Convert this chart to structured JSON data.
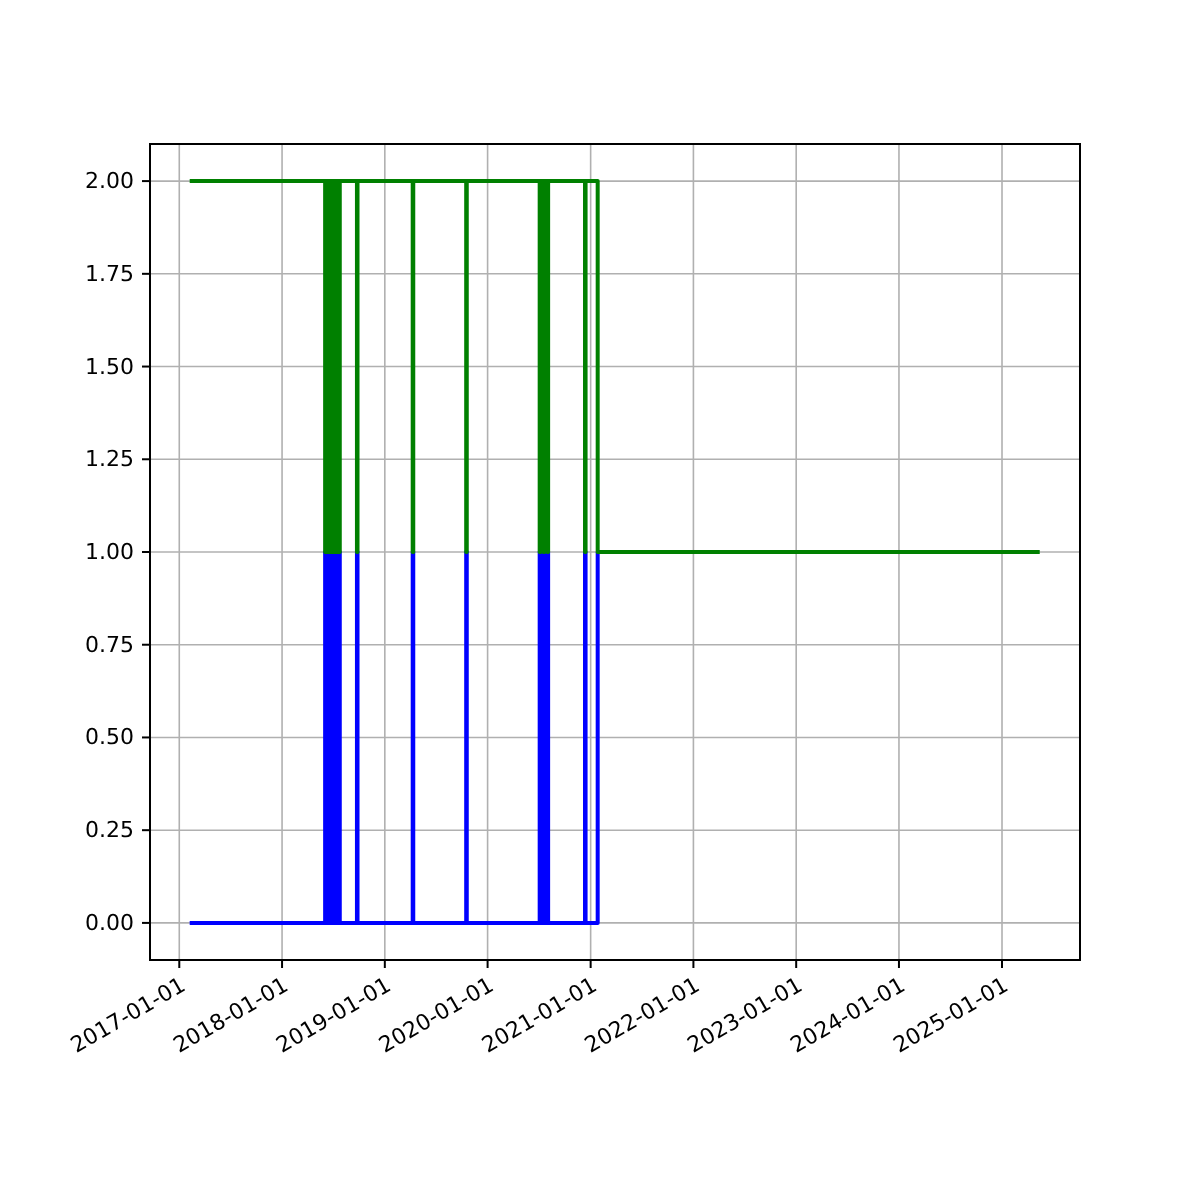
{
  "chart_data": {
    "type": "step",
    "xlim": [
      "2016-09-19",
      "2025-10-05"
    ],
    "ylim": [
      -0.1,
      2.1
    ],
    "xticks": [
      {
        "value": "2017-01-01",
        "label": "2017-01-01"
      },
      {
        "value": "2018-01-01",
        "label": "2018-01-01"
      },
      {
        "value": "2019-01-01",
        "label": "2019-01-01"
      },
      {
        "value": "2020-01-01",
        "label": "2020-01-01"
      },
      {
        "value": "2021-01-01",
        "label": "2021-01-01"
      },
      {
        "value": "2022-01-01",
        "label": "2022-01-01"
      },
      {
        "value": "2023-01-01",
        "label": "2023-01-01"
      },
      {
        "value": "2024-01-01",
        "label": "2024-01-01"
      },
      {
        "value": "2025-01-01",
        "label": "2025-01-01"
      }
    ],
    "yticks": [
      {
        "value": 0,
        "label": "0.00"
      },
      {
        "value": 0.25,
        "label": "0.25"
      },
      {
        "value": 0.5,
        "label": "0.50"
      },
      {
        "value": 0.75,
        "label": "0.75"
      },
      {
        "value": 1,
        "label": "1.00"
      },
      {
        "value": 1.25,
        "label": "1.25"
      },
      {
        "value": 1.5,
        "label": "1.50"
      },
      {
        "value": 1.75,
        "label": "1.75"
      },
      {
        "value": 2,
        "label": "2.00"
      }
    ],
    "grid": true,
    "series": [
      {
        "color": "#0000ff",
        "x": [
          "2017-02-07",
          "2018-06-03",
          "2018-06-06",
          "2018-06-15",
          "2018-06-18",
          "2018-06-28",
          "2018-07-01",
          "2018-07-10",
          "2018-07-13",
          "2018-07-22",
          "2018-07-25",
          "2018-09-24",
          "2018-09-26",
          "2019-04-10",
          "2019-04-12",
          "2019-10-17",
          "2019-10-19",
          "2020-07-04",
          "2020-07-07",
          "2020-07-18",
          "2020-07-21",
          "2020-08-01",
          "2020-08-03",
          "2020-12-12",
          "2020-12-14",
          "2021-01-26"
        ],
        "values": [
          0,
          1,
          0,
          1,
          0,
          1,
          0,
          1,
          0,
          1,
          0,
          1,
          0,
          1,
          0,
          1,
          0,
          1,
          0,
          1,
          0,
          1,
          0,
          1,
          0,
          1
        ]
      },
      {
        "color": "#008000",
        "x": [
          "2017-02-07",
          "2018-06-03",
          "2018-06-06",
          "2018-06-15",
          "2018-06-18",
          "2018-06-28",
          "2018-07-01",
          "2018-07-10",
          "2018-07-13",
          "2018-07-22",
          "2018-07-25",
          "2018-09-24",
          "2018-09-26",
          "2019-04-10",
          "2019-04-12",
          "2019-10-17",
          "2019-10-19",
          "2020-07-04",
          "2020-07-07",
          "2020-07-18",
          "2020-07-21",
          "2020-08-01",
          "2020-08-03",
          "2020-12-12",
          "2020-12-14",
          "2021-01-26",
          "2025-05-15"
        ],
        "values": [
          2,
          1,
          2,
          1,
          2,
          1,
          2,
          1,
          2,
          1,
          2,
          1,
          2,
          1,
          2,
          1,
          2,
          1,
          2,
          1,
          2,
          1,
          2,
          1,
          2,
          1,
          1
        ]
      }
    ]
  }
}
